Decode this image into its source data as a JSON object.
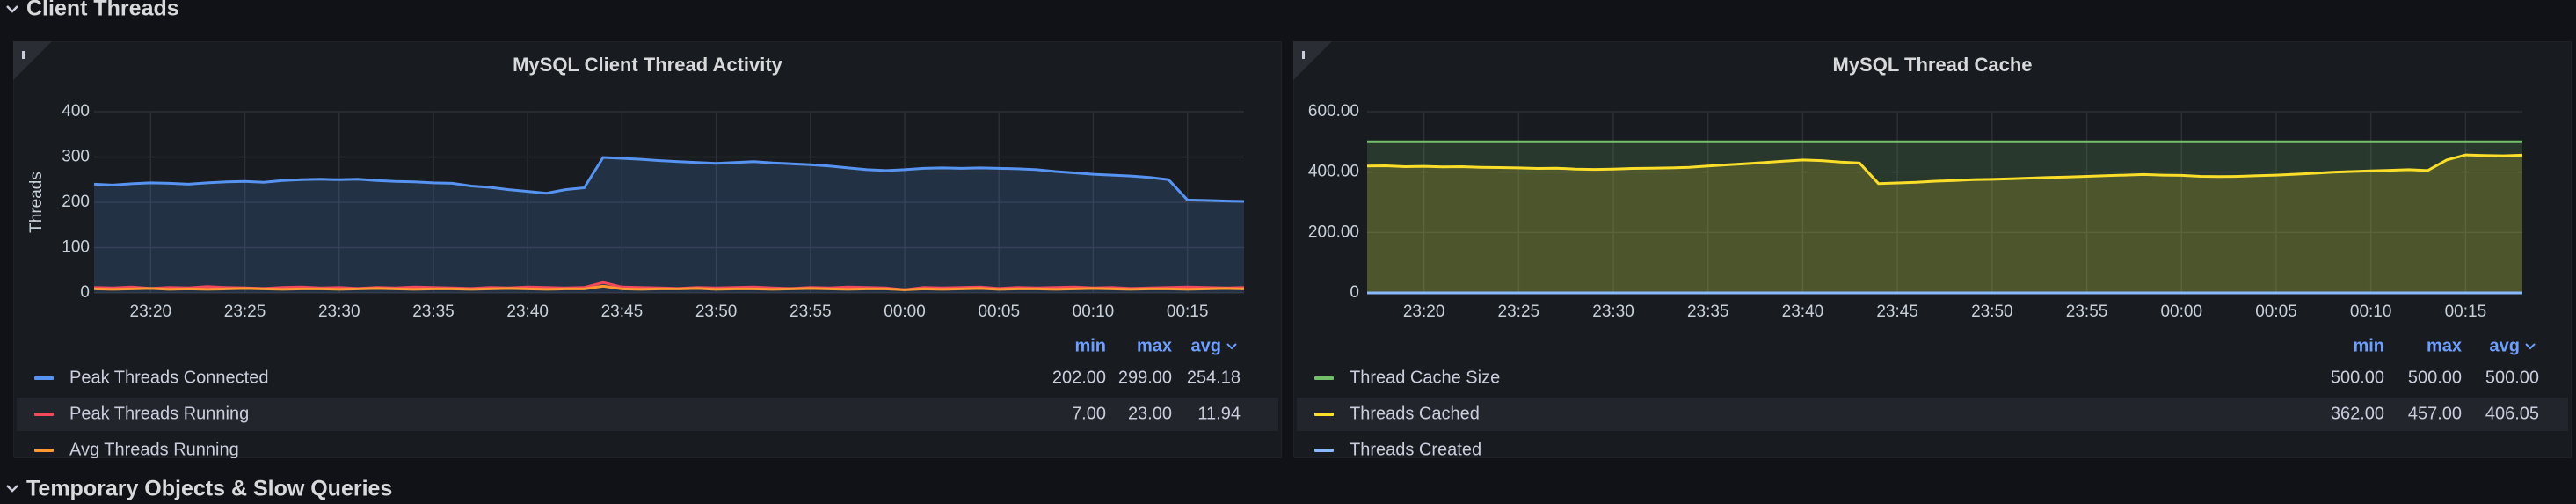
{
  "sections": [
    "Client Threads",
    "Temporary Objects & Slow Queries"
  ],
  "chart_data": [
    {
      "type": "line",
      "title": "MySQL Client Thread Activity",
      "y_label": "Threads",
      "categories": [
        null,
        null,
        null,
        "23:20",
        null,
        null,
        null,
        null,
        "23:25",
        null,
        null,
        null,
        null,
        "23:30",
        null,
        null,
        null,
        null,
        "23:35",
        null,
        null,
        null,
        null,
        "23:40",
        null,
        null,
        null,
        null,
        "23:45",
        null,
        null,
        null,
        null,
        "23:50",
        null,
        null,
        null,
        null,
        "23:55",
        null,
        null,
        null,
        null,
        "00:00",
        null,
        null,
        null,
        null,
        "00:05",
        null,
        null,
        null,
        null,
        "00:10",
        null,
        null,
        null,
        null,
        "00:15",
        null,
        null,
        null
      ],
      "ylim": [
        0,
        400
      ],
      "yticks": [
        0,
        100,
        200,
        300,
        400
      ],
      "grid": true,
      "stat_headers": [
        "min",
        "max",
        "avg"
      ],
      "series": [
        {
          "name": "Peak Threads Connected",
          "color": "#5794f2",
          "fill": true,
          "stats": [
            "202.00",
            "299.00",
            "254.18"
          ],
          "values": [
            240,
            238,
            241,
            243,
            242,
            240,
            243,
            245,
            246,
            244,
            248,
            250,
            251,
            250,
            251,
            248,
            246,
            245,
            243,
            242,
            236,
            233,
            228,
            224,
            220,
            228,
            232,
            299,
            297,
            295,
            292,
            290,
            288,
            286,
            288,
            290,
            287,
            285,
            283,
            280,
            276,
            272,
            270,
            272,
            275,
            276,
            275,
            276,
            275,
            274,
            272,
            268,
            265,
            262,
            260,
            258,
            255,
            250,
            205,
            204,
            203,
            202
          ]
        },
        {
          "name": "Peak Threads Running",
          "color": "#f2495c",
          "fill": false,
          "stats": [
            "7.00",
            "23.00",
            "11.94"
          ],
          "values": [
            12,
            11,
            13,
            10,
            12,
            11,
            14,
            12,
            11,
            10,
            12,
            13,
            11,
            12,
            10,
            12,
            11,
            13,
            12,
            11,
            10,
            12,
            11,
            13,
            12,
            11,
            12,
            23,
            13,
            12,
            11,
            10,
            12,
            11,
            12,
            13,
            11,
            10,
            12,
            11,
            13,
            12,
            11,
            7,
            12,
            11,
            12,
            13,
            10,
            12,
            11,
            12,
            13,
            11,
            12,
            10,
            11,
            12,
            13,
            12,
            11,
            12
          ]
        },
        {
          "name": "Avg Threads Running",
          "color": "#ff9830",
          "fill": false,
          "values": [
            9,
            8,
            9,
            10,
            8,
            9,
            8,
            9,
            10,
            9,
            8,
            9,
            9,
            8,
            9,
            10,
            9,
            8,
            9,
            9,
            8,
            9,
            10,
            9,
            8,
            9,
            9,
            15,
            9,
            8,
            9,
            9,
            10,
            8,
            9,
            9,
            8,
            9,
            10,
            9,
            8,
            9,
            9,
            7,
            9,
            8,
            9,
            10,
            8,
            9,
            9,
            8,
            9,
            10,
            9,
            8,
            9,
            9,
            8,
            9,
            10,
            9
          ]
        }
      ]
    },
    {
      "type": "line",
      "title": "MySQL Thread Cache",
      "categories": [
        null,
        null,
        null,
        "23:20",
        null,
        null,
        null,
        null,
        "23:25",
        null,
        null,
        null,
        null,
        "23:30",
        null,
        null,
        null,
        null,
        "23:35",
        null,
        null,
        null,
        null,
        "23:40",
        null,
        null,
        null,
        null,
        "23:45",
        null,
        null,
        null,
        null,
        "23:50",
        null,
        null,
        null,
        null,
        "23:55",
        null,
        null,
        null,
        null,
        "00:00",
        null,
        null,
        null,
        null,
        "00:05",
        null,
        null,
        null,
        null,
        "00:10",
        null,
        null,
        null,
        null,
        "00:15",
        null,
        null,
        null
      ],
      "ylim": [
        0,
        600
      ],
      "yticks": [
        0,
        {
          "value": 200,
          "label": "200.00"
        },
        {
          "value": 400,
          "label": "400.00"
        },
        {
          "value": 600,
          "label": "600.00"
        }
      ],
      "grid": true,
      "stat_headers": [
        "min",
        "max",
        "avg"
      ],
      "series": [
        {
          "name": "Thread Cache Size",
          "color": "#73bf69",
          "fill": true,
          "stats": [
            "500.00",
            "500.00",
            "500.00"
          ],
          "values": [
            500,
            500,
            500,
            500,
            500,
            500,
            500,
            500,
            500,
            500,
            500,
            500,
            500,
            500,
            500,
            500,
            500,
            500,
            500,
            500,
            500,
            500,
            500,
            500,
            500,
            500,
            500,
            500,
            500,
            500,
            500,
            500,
            500,
            500,
            500,
            500,
            500,
            500,
            500,
            500,
            500,
            500,
            500,
            500,
            500,
            500,
            500,
            500,
            500,
            500,
            500,
            500,
            500,
            500,
            500,
            500,
            500,
            500,
            500,
            500,
            500,
            500
          ]
        },
        {
          "name": "Threads Cached",
          "color": "#fade2a",
          "fill": true,
          "stats": [
            "362.00",
            "457.00",
            "406.05"
          ],
          "values": [
            420,
            421,
            418,
            419,
            417,
            418,
            416,
            415,
            414,
            412,
            413,
            410,
            409,
            410,
            412,
            413,
            414,
            416,
            420,
            424,
            428,
            432,
            436,
            440,
            438,
            433,
            430,
            362,
            364,
            366,
            370,
            372,
            375,
            376,
            378,
            380,
            382,
            384,
            386,
            388,
            390,
            392,
            390,
            389,
            386,
            385,
            386,
            388,
            390,
            393,
            396,
            400,
            402,
            404,
            406,
            408,
            405,
            440,
            457,
            455,
            454,
            456
          ]
        },
        {
          "name": "Threads Created",
          "color": "#8ab8ff",
          "fill": false,
          "values": [
            0,
            0,
            0,
            0,
            0,
            0,
            0,
            0,
            0,
            0,
            0,
            0,
            0,
            0,
            0,
            0,
            0,
            0,
            0,
            0,
            0,
            0,
            0,
            0,
            0,
            0,
            0,
            0,
            0,
            0,
            0,
            0,
            0,
            0,
            0,
            0,
            0,
            0,
            0,
            0,
            0,
            0,
            0,
            0,
            0,
            0,
            0,
            0,
            0,
            0,
            0,
            0,
            0,
            0,
            0,
            0,
            0,
            0,
            0,
            0,
            0,
            0
          ]
        }
      ]
    }
  ]
}
